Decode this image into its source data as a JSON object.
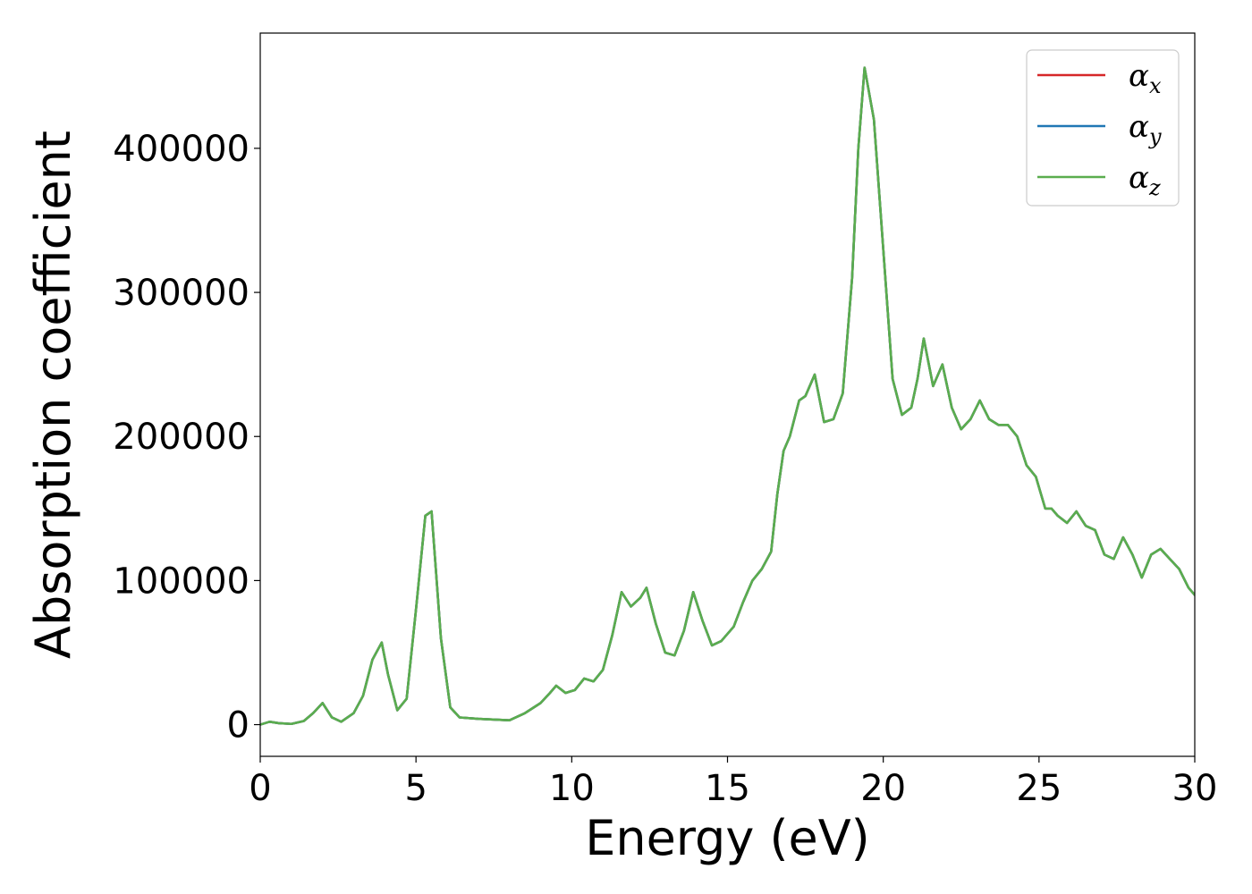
{
  "chart_data": {
    "type": "line",
    "title": "",
    "xlabel": "Energy (eV)",
    "ylabel": "Absorption coefficient",
    "xlim": [
      0,
      30
    ],
    "ylim": [
      -22000,
      480000
    ],
    "xticks": [
      0,
      5,
      10,
      15,
      20,
      25,
      30
    ],
    "xtick_labels": [
      "0",
      "5",
      "10",
      "15",
      "20",
      "25",
      "30"
    ],
    "yticks": [
      0,
      100000,
      200000,
      300000,
      400000
    ],
    "ytick_labels": [
      "0",
      "100000",
      "200000",
      "300000",
      "400000"
    ],
    "grid": false,
    "legend_position": "top-right",
    "series": [
      {
        "name": "αx",
        "symbol": "α",
        "subscript": "x",
        "color": "#d62728"
      },
      {
        "name": "αy",
        "symbol": "α",
        "subscript": "y",
        "color": "#1f77b4"
      },
      {
        "name": "αz",
        "symbol": "α",
        "subscript": "z",
        "color": "#5aad4e"
      }
    ],
    "x": [
      0,
      0.3,
      0.6,
      1.0,
      1.4,
      1.7,
      2.0,
      2.3,
      2.6,
      3.0,
      3.3,
      3.6,
      3.9,
      4.1,
      4.4,
      4.7,
      5.0,
      5.3,
      5.5,
      5.8,
      6.1,
      6.4,
      7.0,
      8.0,
      8.5,
      9.0,
      9.3,
      9.5,
      9.8,
      10.1,
      10.4,
      10.7,
      11.0,
      11.3,
      11.6,
      11.9,
      12.2,
      12.4,
      12.7,
      13.0,
      13.3,
      13.6,
      13.9,
      14.2,
      14.5,
      14.8,
      15.2,
      15.5,
      15.8,
      16.1,
      16.4,
      16.6,
      16.8,
      17.0,
      17.3,
      17.5,
      17.8,
      18.1,
      18.4,
      18.7,
      19.0,
      19.2,
      19.4,
      19.7,
      20.0,
      20.3,
      20.6,
      20.9,
      21.1,
      21.3,
      21.6,
      21.9,
      22.2,
      22.5,
      22.8,
      23.1,
      23.4,
      23.7,
      24.0,
      24.3,
      24.6,
      24.9,
      25.2,
      25.4,
      25.6,
      25.9,
      26.2,
      26.5,
      26.8,
      27.1,
      27.4,
      27.7,
      28.0,
      28.3,
      28.6,
      28.9,
      29.2,
      29.5,
      29.8,
      30.0
    ],
    "y": [
      0,
      2000,
      1000,
      500,
      2500,
      8000,
      15000,
      5000,
      2000,
      8000,
      20000,
      45000,
      57000,
      35000,
      10000,
      18000,
      80000,
      145000,
      148000,
      60000,
      12000,
      5000,
      4000,
      3000,
      8000,
      15000,
      22000,
      27000,
      22000,
      24000,
      32000,
      30000,
      38000,
      62000,
      92000,
      82000,
      88000,
      95000,
      70000,
      50000,
      48000,
      65000,
      92000,
      72000,
      55000,
      58000,
      68000,
      85000,
      100000,
      108000,
      120000,
      160000,
      190000,
      200000,
      225000,
      228000,
      243000,
      210000,
      212000,
      230000,
      310000,
      400000,
      456000,
      420000,
      330000,
      240000,
      215000,
      220000,
      240000,
      268000,
      235000,
      250000,
      220000,
      205000,
      212000,
      225000,
      212000,
      208000,
      208000,
      200000,
      180000,
      172000,
      150000,
      150000,
      145000,
      140000,
      148000,
      138000,
      135000,
      118000,
      115000,
      130000,
      118000,
      102000,
      118000,
      122000,
      115000,
      108000,
      95000,
      90000
    ]
  }
}
